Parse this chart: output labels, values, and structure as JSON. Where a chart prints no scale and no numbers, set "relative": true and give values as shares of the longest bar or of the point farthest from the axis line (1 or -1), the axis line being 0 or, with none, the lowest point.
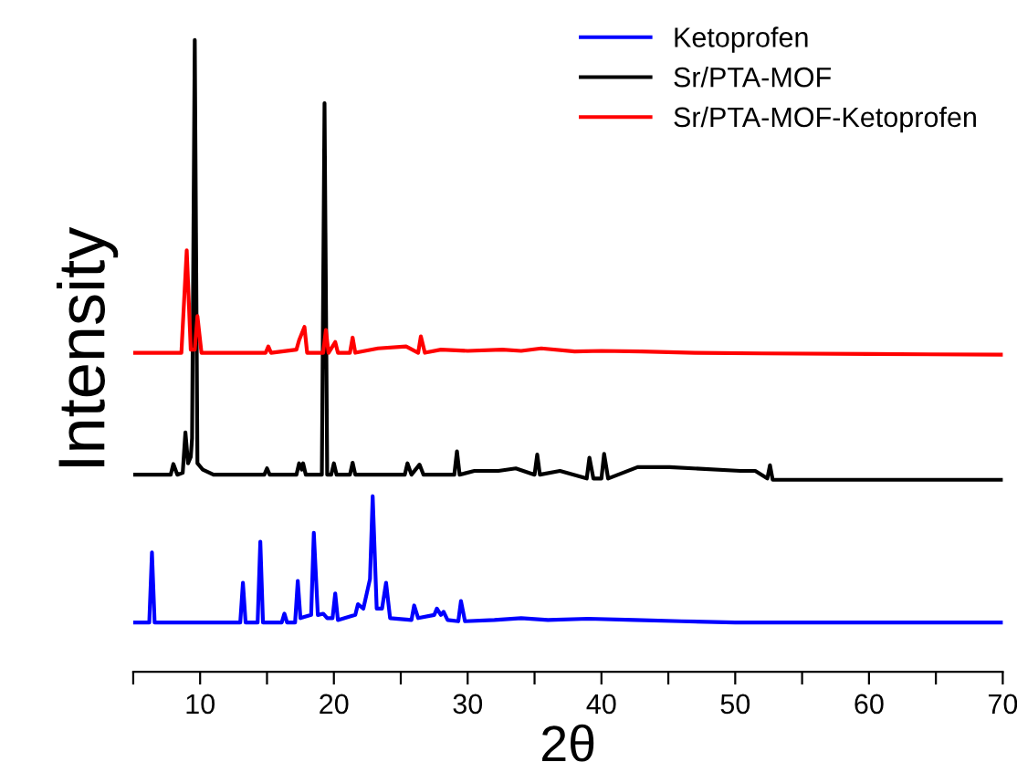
{
  "chart_data": {
    "type": "line",
    "xlabel": "2θ",
    "ylabel": "Intensity",
    "relative": true,
    "xlim": [
      5,
      70
    ],
    "xticks": [
      {
        "value": 5,
        "label": null
      },
      10,
      {
        "value": 15,
        "label": null
      },
      20,
      {
        "value": 25,
        "label": null
      },
      30,
      {
        "value": 35,
        "label": null
      },
      40,
      {
        "value": 45,
        "label": null
      },
      50,
      {
        "value": 55,
        "label": null
      },
      60,
      {
        "value": 65,
        "label": null
      },
      70
    ],
    "legend": "top right",
    "grid": false,
    "marker": "none",
    "line_style": "solid",
    "series": [
      {
        "name": "Ketoprofen",
        "color": "#0000ff",
        "x": [
          5,
          6.2,
          6.4,
          6.6,
          13.0,
          13.2,
          13.4,
          14.3,
          14.5,
          14.7,
          16.1,
          16.3,
          16.5,
          17.1,
          17.3,
          17.5,
          18.3,
          18.5,
          18.8,
          19.2,
          19.5,
          19.9,
          20.1,
          20.3,
          21.6,
          21.8,
          22.2,
          22.7,
          22.9,
          23.2,
          23.6,
          23.9,
          24.2,
          25.8,
          26.0,
          26.3,
          27.5,
          27.7,
          28.0,
          28.2,
          28.5,
          29.3,
          29.5,
          29.8,
          32,
          34,
          36,
          39,
          42.5,
          46,
          50,
          55,
          60,
          70
        ],
        "values": [
          0.078,
          0.078,
          0.189,
          0.078,
          0.078,
          0.141,
          0.078,
          0.078,
          0.206,
          0.078,
          0.078,
          0.092,
          0.078,
          0.078,
          0.144,
          0.085,
          0.09,
          0.22,
          0.09,
          0.092,
          0.085,
          0.085,
          0.124,
          0.082,
          0.09,
          0.107,
          0.1,
          0.147,
          0.278,
          0.1,
          0.1,
          0.141,
          0.085,
          0.082,
          0.105,
          0.085,
          0.09,
          0.1,
          0.09,
          0.095,
          0.082,
          0.08,
          0.112,
          0.08,
          0.082,
          0.085,
          0.082,
          0.084,
          0.082,
          0.08,
          0.078,
          0.078,
          0.078,
          0.078
        ]
      },
      {
        "name": "Sr/PTA-MOF",
        "color": "#000000",
        "x": [
          5,
          7.8,
          8.0,
          8.3,
          8.7,
          8.9,
          9.1,
          9.3,
          9.4,
          9.6,
          9.8,
          10.2,
          11,
          14.8,
          15.0,
          15.2,
          17.2,
          17.4,
          17.6,
          17.7,
          17.9,
          19.1,
          19.3,
          19.5,
          19.8,
          20.0,
          20.2,
          21.2,
          21.4,
          21.6,
          25.3,
          25.5,
          25.8,
          26.4,
          26.7,
          29.0,
          29.2,
          29.4,
          30.5,
          32.3,
          33.6,
          35.0,
          35.2,
          35.4,
          36.9,
          38.9,
          39.1,
          39.4,
          40.0,
          40.2,
          40.5,
          42.7,
          45.1,
          50.4,
          51.5,
          52.4,
          52.6,
          52.8,
          56,
          62,
          70
        ],
        "values": [
          0.312,
          0.312,
          0.329,
          0.312,
          0.315,
          0.379,
          0.33,
          0.34,
          0.37,
          1.0,
          0.33,
          0.32,
          0.312,
          0.312,
          0.322,
          0.312,
          0.312,
          0.33,
          0.32,
          0.33,
          0.312,
          0.312,
          0.9,
          0.312,
          0.312,
          0.33,
          0.312,
          0.312,
          0.331,
          0.312,
          0.312,
          0.33,
          0.312,
          0.328,
          0.312,
          0.312,
          0.349,
          0.312,
          0.318,
          0.318,
          0.322,
          0.312,
          0.344,
          0.312,
          0.318,
          0.306,
          0.339,
          0.306,
          0.306,
          0.345,
          0.306,
          0.324,
          0.324,
          0.318,
          0.318,
          0.306,
          0.327,
          0.304,
          0.304,
          0.304,
          0.304
        ]
      },
      {
        "name": "Sr/PTA-MOF-Ketoprofen",
        "color": "#ff0000",
        "x": [
          5,
          8.6,
          9.0,
          9.3,
          9.6,
          9.8,
          10.1,
          14.9,
          15.1,
          15.3,
          17.2,
          17.4,
          17.8,
          18.0,
          19.2,
          19.4,
          19.6,
          20.1,
          20.3,
          21.2,
          21.4,
          21.6,
          23.3,
          25.4,
          26.3,
          26.5,
          26.8,
          28,
          30,
          32.6,
          34,
          35.5,
          38,
          40,
          43,
          47,
          52,
          60,
          70
        ],
        "values": [
          0.505,
          0.505,
          0.667,
          0.51,
          0.51,
          0.563,
          0.505,
          0.505,
          0.515,
          0.505,
          0.51,
          0.525,
          0.546,
          0.505,
          0.505,
          0.541,
          0.505,
          0.522,
          0.505,
          0.505,
          0.529,
          0.505,
          0.512,
          0.515,
          0.505,
          0.531,
          0.505,
          0.51,
          0.508,
          0.51,
          0.508,
          0.512,
          0.507,
          0.508,
          0.507,
          0.505,
          0.504,
          0.503,
          0.502
        ]
      }
    ]
  }
}
